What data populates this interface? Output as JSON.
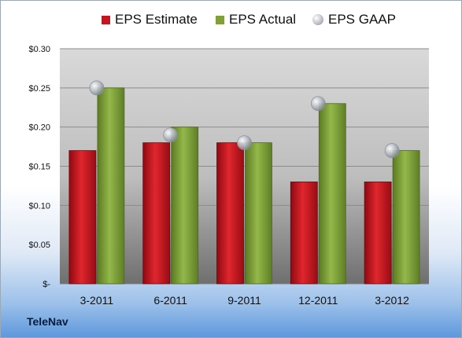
{
  "company": "TeleNav",
  "chart_data": {
    "type": "bar",
    "categories": [
      "3-2011",
      "6-2011",
      "9-2011",
      "12-2011",
      "3-2012"
    ],
    "series": [
      {
        "name": "EPS Estimate",
        "kind": "bar",
        "color": "#c8141e",
        "values": [
          0.17,
          0.18,
          0.18,
          0.13,
          0.13
        ]
      },
      {
        "name": "EPS Actual",
        "kind": "bar",
        "color": "#7fa03a",
        "values": [
          0.25,
          0.2,
          0.18,
          0.23,
          0.17
        ]
      },
      {
        "name": "EPS GAAP",
        "kind": "marker",
        "color": "#b8bcc4",
        "values": [
          0.25,
          0.19,
          0.18,
          0.23,
          0.17
        ]
      }
    ],
    "yticks": [
      "$-",
      "$0.05",
      "$0.10",
      "$0.15",
      "$0.20",
      "$0.25",
      "$0.30"
    ],
    "ylim": [
      0,
      0.3
    ],
    "grid": true,
    "legend_position": "top"
  }
}
